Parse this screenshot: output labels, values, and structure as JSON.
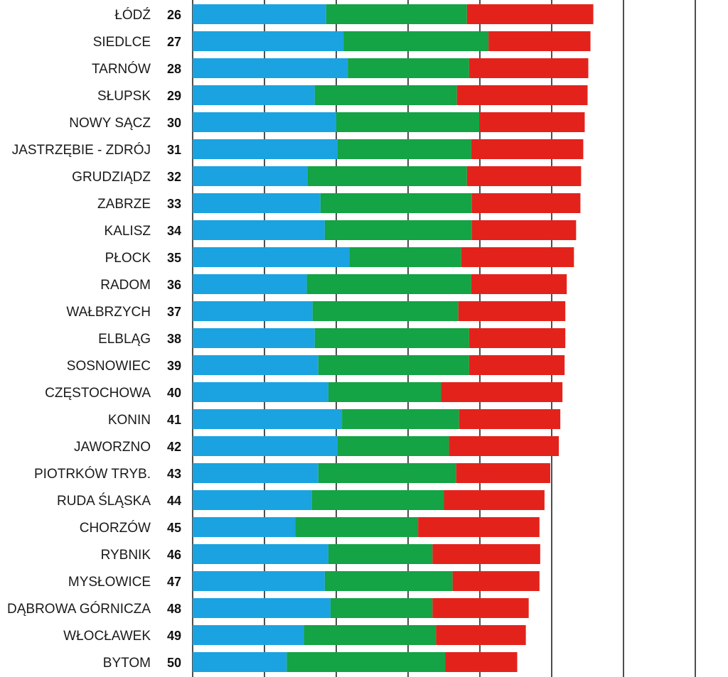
{
  "chart_data": {
    "type": "bar",
    "stacked": true,
    "orientation": "horizontal",
    "colors": [
      "#1aa3e0",
      "#14a345",
      "#e3231b"
    ],
    "categories": [
      {
        "city": "ŁÓDŹ",
        "rank": "26"
      },
      {
        "city": "SIEDLCE",
        "rank": "27"
      },
      {
        "city": "TARNÓW",
        "rank": "28"
      },
      {
        "city": "SŁUPSK",
        "rank": "29"
      },
      {
        "city": "NOWY SĄCZ",
        "rank": "30"
      },
      {
        "city": "JASTRZĘBIE - ZDRÓJ",
        "rank": "31"
      },
      {
        "city": "GRUDZIĄDZ",
        "rank": "32"
      },
      {
        "city": "ZABRZE",
        "rank": "33"
      },
      {
        "city": "KALISZ",
        "rank": "34"
      },
      {
        "city": "PŁOCK",
        "rank": "35"
      },
      {
        "city": "RADOM",
        "rank": "36"
      },
      {
        "city": "WAŁBRZYCH",
        "rank": "37"
      },
      {
        "city": "ELBLĄG",
        "rank": "38"
      },
      {
        "city": "SOSNOWIEC",
        "rank": "39"
      },
      {
        "city": "CZĘSTOCHOWA",
        "rank": "40"
      },
      {
        "city": "KONIN",
        "rank": "41"
      },
      {
        "city": "JAWORZNO",
        "rank": "42"
      },
      {
        "city": "PIOTRKÓW TRYB.",
        "rank": "43"
      },
      {
        "city": "RUDA ŚLĄSKA",
        "rank": "44"
      },
      {
        "city": "CHORZÓW",
        "rank": "45"
      },
      {
        "city": "RYBNIK",
        "rank": "46"
      },
      {
        "city": "MYSŁOWICE",
        "rank": "47"
      },
      {
        "city": "DĄBROWA GÓRNICZA",
        "rank": "48"
      },
      {
        "city": "WŁOCŁAWEK",
        "rank": "49"
      },
      {
        "city": "BYTOM",
        "rank": "50"
      }
    ],
    "series": [
      {
        "values": [
          18.6,
          21.0,
          21.6,
          17.0,
          20.0,
          20.2,
          16.0,
          17.8,
          18.4,
          21.8,
          15.9,
          16.7,
          17.0,
          17.5,
          18.9,
          20.8,
          20.2,
          17.5,
          16.6,
          14.3,
          18.9,
          18.4,
          19.2,
          15.5,
          13.1
        ]
      },
      {
        "values": [
          19.6,
          20.2,
          16.9,
          19.8,
          19.9,
          18.6,
          22.2,
          21.1,
          20.5,
          15.6,
          22.9,
          20.3,
          21.5,
          21.0,
          15.7,
          16.3,
          15.5,
          19.2,
          18.4,
          17.1,
          14.5,
          17.8,
          14.2,
          18.4,
          22.1
        ]
      },
      {
        "values": [
          17.6,
          14.2,
          16.6,
          18.2,
          14.7,
          15.6,
          15.9,
          15.1,
          14.5,
          15.7,
          13.3,
          14.9,
          13.4,
          13.3,
          16.9,
          14.1,
          15.3,
          13.1,
          14.0,
          16.9,
          15.0,
          12.1,
          13.4,
          12.5,
          10.0
        ]
      }
    ],
    "xlim": [
      0,
      70
    ],
    "gridlines": [
      0,
      10,
      20,
      30,
      40,
      50,
      60,
      70
    ]
  }
}
